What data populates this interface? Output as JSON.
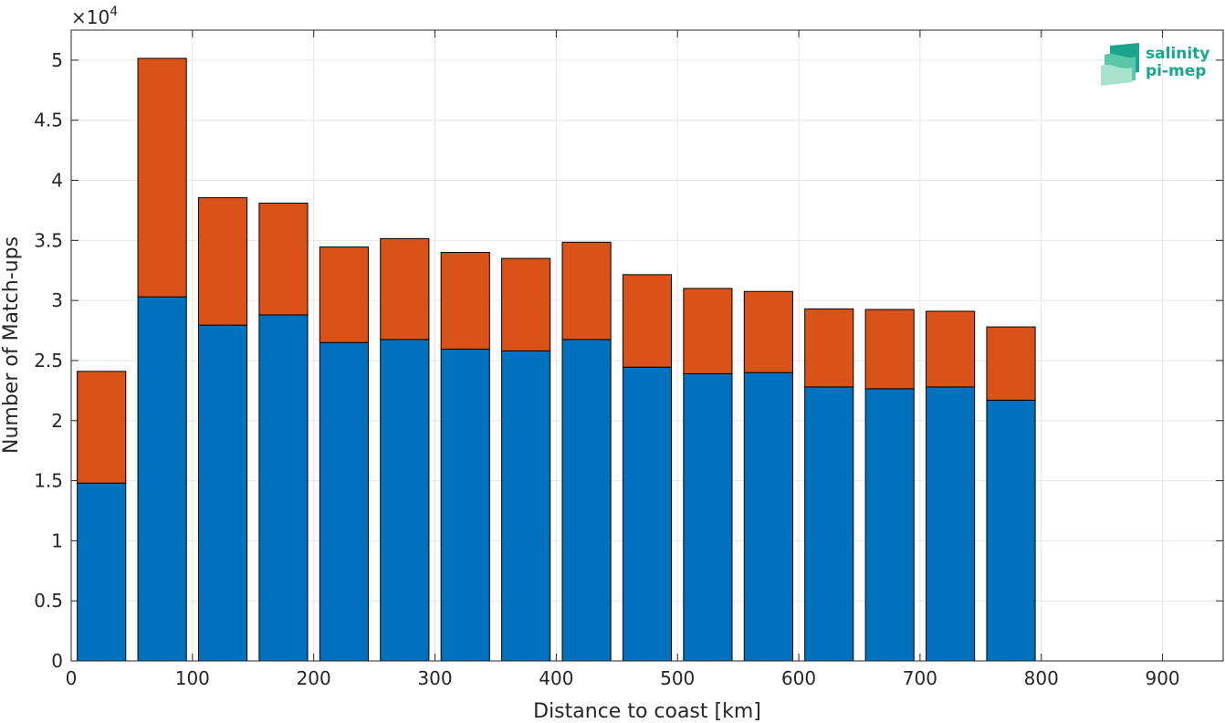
{
  "chart_data": {
    "type": "bar",
    "stacked": true,
    "x": [
      25,
      75,
      125,
      175,
      225,
      275,
      325,
      375,
      425,
      475,
      525,
      575,
      625,
      675,
      725,
      775
    ],
    "bar_width": 40,
    "series": [
      {
        "color": "#0072bd",
        "values": [
          14800,
          30300,
          27950,
          28800,
          26500,
          26750,
          25950,
          25800,
          26750,
          24450,
          23900,
          24000,
          22800,
          22650,
          22800,
          21700
        ]
      },
      {
        "color": "#d95319",
        "values": [
          9300,
          19850,
          10600,
          9300,
          7950,
          8400,
          8050,
          7700,
          8100,
          7700,
          7100,
          6750,
          6500,
          6600,
          6300,
          6100
        ]
      }
    ],
    "xlabel": "Distance to coast [km]",
    "ylabel": "Number of Match-ups",
    "xlim": [
      0,
      950
    ],
    "ylim": [
      0,
      52500
    ],
    "xticks": [
      0,
      100,
      200,
      300,
      400,
      500,
      600,
      700,
      800,
      900
    ],
    "yticks": [
      0,
      5000,
      10000,
      15000,
      20000,
      25000,
      30000,
      35000,
      40000,
      45000,
      50000
    ],
    "ytick_labels": [
      "0",
      "0.5",
      "1",
      "1.5",
      "2",
      "2.5",
      "3",
      "3.5",
      "4",
      "4.5",
      "5"
    ],
    "y_exponent_base": "×10",
    "y_exponent_power": "4",
    "grid": true
  },
  "logo": {
    "line1": "salinity",
    "line2": "pi-mep",
    "color": "#1aa58c"
  }
}
